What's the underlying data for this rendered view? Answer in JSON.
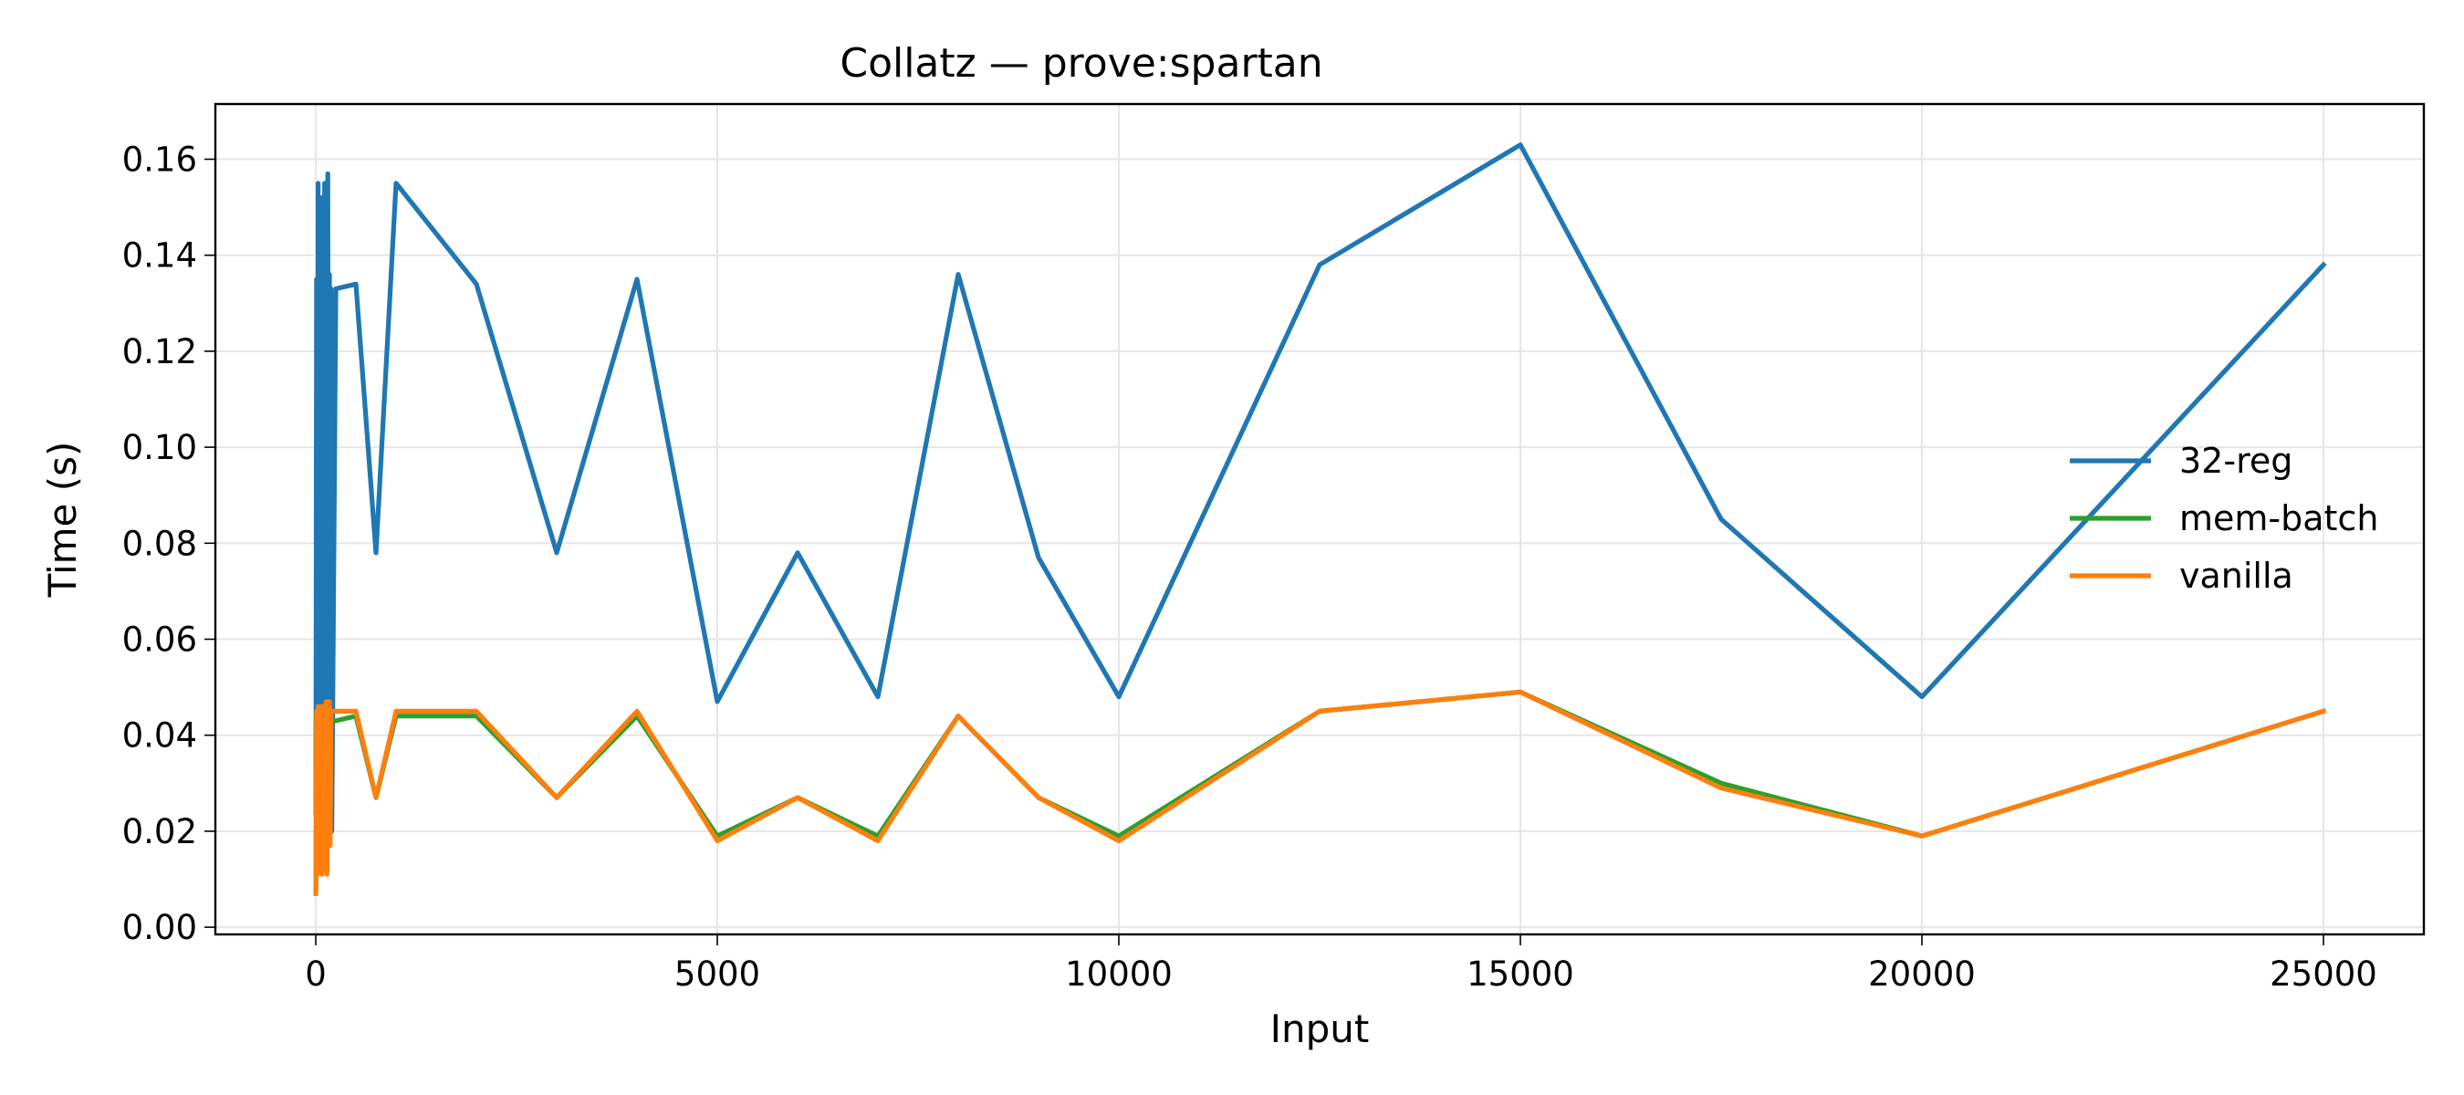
{
  "chart_data": {
    "type": "line",
    "title": "Collatz — prove:spartan",
    "xlabel": "Input",
    "ylabel": "Time (s)",
    "xlim": [
      -1250,
      26250
    ],
    "ylim": [
      -0.0015,
      0.1715
    ],
    "xticks": [
      0,
      5000,
      10000,
      15000,
      20000,
      25000
    ],
    "xtick_labels": [
      "0",
      "5000",
      "10000",
      "15000",
      "20000",
      "25000"
    ],
    "yticks": [
      0,
      0.02,
      0.04,
      0.06,
      0.08,
      0.1,
      0.12,
      0.14,
      0.16
    ],
    "ytick_labels": [
      "0.00",
      "0.02",
      "0.04",
      "0.06",
      "0.08",
      "0.10",
      "0.12",
      "0.14",
      "0.16"
    ],
    "grid": true,
    "legend_position": "center-right",
    "series": [
      {
        "name": "32-reg",
        "color": "#1f77b4",
        "x": [
          1,
          10,
          20,
          30,
          40,
          50,
          60,
          70,
          80,
          90,
          100,
          110,
          120,
          130,
          140,
          150,
          160,
          170,
          180,
          190,
          200,
          250,
          500,
          750,
          1000,
          2000,
          3000,
          4000,
          5000,
          6000,
          7000,
          8000,
          9000,
          10000,
          12500,
          15000,
          17500,
          20000,
          25000
        ],
        "y": [
          0.024,
          0.135,
          0.02,
          0.155,
          0.03,
          0.133,
          0.05,
          0.152,
          0.04,
          0.135,
          0.02,
          0.155,
          0.035,
          0.134,
          0.045,
          0.157,
          0.02,
          0.136,
          0.025,
          0.133,
          0.02,
          0.133,
          0.134,
          0.078,
          0.155,
          0.134,
          0.078,
          0.135,
          0.047,
          0.078,
          0.048,
          0.136,
          0.077,
          0.048,
          0.138,
          0.163,
          0.085,
          0.048,
          0.138
        ]
      },
      {
        "name": "mem-batch",
        "color": "#2ca02c",
        "x": [
          1,
          10,
          20,
          30,
          40,
          50,
          60,
          70,
          80,
          90,
          100,
          110,
          120,
          130,
          140,
          150,
          160,
          170,
          180,
          190,
          200,
          250,
          500,
          750,
          1000,
          2000,
          3000,
          4000,
          5000,
          6000,
          7000,
          8000,
          9000,
          10000,
          12500,
          15000,
          17500,
          20000,
          25000
        ],
        "y": [
          0.008,
          0.044,
          0.012,
          0.045,
          0.015,
          0.044,
          0.02,
          0.046,
          0.012,
          0.045,
          0.014,
          0.044,
          0.018,
          0.046,
          0.012,
          0.045,
          0.02,
          0.046,
          0.018,
          0.044,
          0.043,
          0.043,
          0.044,
          0.027,
          0.044,
          0.044,
          0.027,
          0.044,
          0.019,
          0.027,
          0.019,
          0.044,
          0.027,
          0.019,
          0.045,
          0.049,
          0.03,
          0.019,
          0.045
        ]
      },
      {
        "name": "vanilla",
        "color": "#ff7f0e",
        "x": [
          1,
          10,
          20,
          30,
          40,
          50,
          60,
          70,
          80,
          90,
          100,
          110,
          120,
          130,
          140,
          150,
          160,
          170,
          180,
          190,
          200,
          250,
          500,
          750,
          1000,
          2000,
          3000,
          4000,
          5000,
          6000,
          7000,
          8000,
          9000,
          10000,
          12500,
          15000,
          17500,
          20000,
          25000
        ],
        "y": [
          0.007,
          0.045,
          0.011,
          0.046,
          0.014,
          0.045,
          0.021,
          0.046,
          0.011,
          0.046,
          0.013,
          0.045,
          0.017,
          0.047,
          0.011,
          0.046,
          0.019,
          0.047,
          0.017,
          0.045,
          0.045,
          0.045,
          0.045,
          0.027,
          0.045,
          0.045,
          0.027,
          0.045,
          0.018,
          0.027,
          0.018,
          0.044,
          0.027,
          0.018,
          0.045,
          0.049,
          0.029,
          0.019,
          0.045
        ]
      }
    ]
  }
}
